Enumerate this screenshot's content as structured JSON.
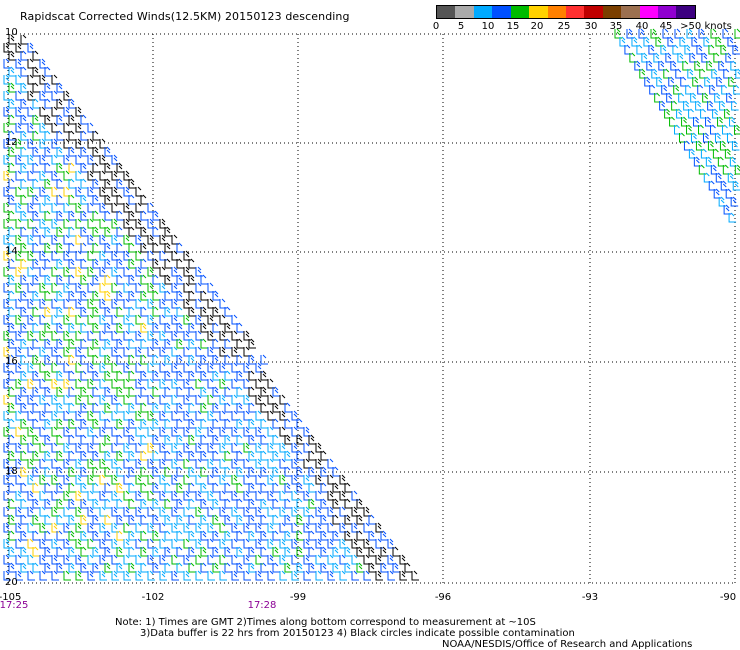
{
  "title": "Rapidscat Corrected Winds(12.5KM) 20150123 descending",
  "legend": {
    "colors": [
      "#555555",
      "#aaaaaa",
      "#00aaff",
      "#0050ff",
      "#00bb00",
      "#ffd200",
      "#ff8000",
      "#ff3030",
      "#c00000",
      "#7b3f00",
      "#9c7050",
      "#ff00ff",
      "#9000d0",
      "#3c0080"
    ],
    "labels": [
      "0",
      "5",
      "10",
      "15",
      "20",
      "25",
      "30",
      "35",
      "40",
      "45",
      ">50 knots"
    ]
  },
  "axes": {
    "lat_labels": [
      "10",
      "12",
      "14",
      "16",
      "18",
      "20"
    ],
    "lon_labels": [
      "-105",
      "-102",
      "-99",
      "-96",
      "-93",
      "-90"
    ],
    "time_labels": [
      "17:25",
      "17:28"
    ]
  },
  "barb_colors": {
    "calm": "#000000",
    "light": "#00aaff",
    "moderate": "#0050ff",
    "fresh": "#00bb00",
    "strong": "#ffd200"
  },
  "notes": {
    "line1": "Note: 1) Times are GMT 2)Times along bottom correspond to measurement at ~10S",
    "line2": "3)Data buffer is 22 hrs from 20150123 4) Black circles indicate possible contamination",
    "credit": "NOAA/NESDIS/Office of Research and Applications"
  }
}
